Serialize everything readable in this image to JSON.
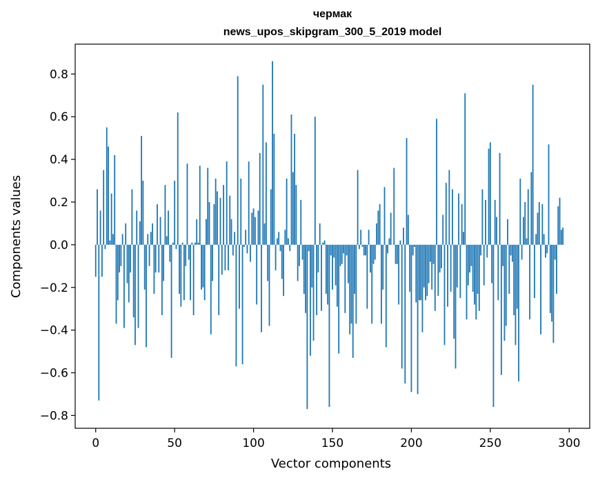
{
  "chart_data": {
    "type": "bar",
    "title": "чермак",
    "subtitle": "news_upos_skipgram_300_5_2019 model",
    "xlabel": "Vector components",
    "ylabel": "Components values",
    "xlim": [
      -13,
      313
    ],
    "ylim": [
      -0.86,
      0.94
    ],
    "xticks": [
      0,
      50,
      100,
      150,
      200,
      250,
      300
    ],
    "xtick_labels": [
      "0",
      "50",
      "100",
      "150",
      "200",
      "250",
      "300"
    ],
    "yticks": [
      0.8,
      0.6,
      0.4,
      0.2,
      0.0,
      -0.2,
      -0.4,
      -0.6,
      -0.8
    ],
    "ytick_labels": [
      "0.8",
      "0.6",
      "0.4",
      "0.2",
      "0.0",
      "−0.2",
      "−0.4",
      "−0.6",
      "−0.8"
    ],
    "bar_color": "#1f77b4",
    "values": [
      -0.15,
      0.26,
      -0.73,
      0.16,
      -0.15,
      0.35,
      -0.02,
      0.55,
      0.46,
      0.02,
      0.24,
      0.05,
      0.42,
      -0.37,
      -0.26,
      -0.13,
      -0.1,
      0.05,
      -0.39,
      0.1,
      -0.18,
      -0.27,
      -0.13,
      0.26,
      -0.34,
      -0.47,
      0.16,
      -0.39,
      0.11,
      0.51,
      0.3,
      -0.21,
      -0.48,
      0.05,
      -0.1,
      0.06,
      0.1,
      -0.23,
      -0.13,
      0.19,
      -0.13,
      0.13,
      -0.33,
      -0.17,
      0.28,
      0.04,
      0.16,
      -0.08,
      -0.53,
      0.01,
      0.3,
      -0.02,
      0.62,
      -0.23,
      -0.29,
      0.01,
      -0.26,
      -0.1,
      0.38,
      -0.07,
      -0.26,
      0.01,
      -0.33,
      0.01,
      0.12,
      0.01,
      0.37,
      -0.21,
      -0.2,
      -0.26,
      0.12,
      0.36,
      0.2,
      -0.42,
      -0.17,
      0.19,
      0.31,
      0.25,
      -0.33,
      0.22,
      -0.14,
      0.28,
      -0.12,
      0.39,
      -0.12,
      0.23,
      0.12,
      -0.05,
      0.06,
      -0.57,
      0.79,
      -0.3,
      0.31,
      -0.56,
      -0.01,
      0.07,
      -0.04,
      0.39,
      -0.08,
      0.15,
      0.17,
      0.13,
      -0.28,
      0.16,
      0.43,
      -0.41,
      0.75,
      0.1,
      0.48,
      -0.17,
      -0.38,
      0.26,
      0.86,
      0.52,
      -0.12,
      0.03,
      0.06,
      -0.03,
      -0.16,
      -0.24,
      0.07,
      0.31,
      0.03,
      -0.03,
      0.61,
      0.34,
      0.52,
      0.28,
      -0.17,
      -0.1,
      0.21,
      -0.07,
      -0.23,
      -0.32,
      -0.77,
      -0.03,
      -0.52,
      -0.2,
      -0.45,
      0.6,
      -0.33,
      -0.13,
      0.1,
      -0.31,
      0.01,
      0.02,
      -0.23,
      -0.28,
      -0.76,
      -0.05,
      -0.21,
      -0.06,
      -0.19,
      -0.29,
      -0.51,
      -0.1,
      -0.09,
      -0.04,
      -0.32,
      -0.05,
      -0.18,
      -0.42,
      -0.37,
      -0.53,
      -0.23,
      -0.37,
      0.35,
      -0.02,
      0.07,
      -0.01,
      -0.05,
      -0.05,
      -0.3,
      0.07,
      -0.13,
      -0.37,
      -0.09,
      -0.07,
      0.1,
      0.16,
      0.19,
      -0.37,
      -0.21,
      0.27,
      -0.48,
      -0.04,
      0.03,
      0.15,
      0.0,
      0.36,
      -0.09,
      -0.09,
      -0.28,
      0.02,
      -0.58,
      0.08,
      -0.65,
      0.5,
      0.14,
      -0.22,
      -0.69,
      -0.05,
      -0.01,
      -0.27,
      -0.7,
      -0.26,
      -0.26,
      -0.41,
      -0.2,
      -0.26,
      -0.24,
      -0.18,
      -0.08,
      -0.21,
      -0.09,
      -0.31,
      0.59,
      -0.24,
      -0.13,
      -0.11,
      0.14,
      -0.47,
      0.29,
      -0.29,
      0.35,
      -0.22,
      0.26,
      -0.44,
      -0.58,
      -0.2,
      0.24,
      -0.25,
      0.19,
      0.06,
      0.71,
      -0.35,
      -0.19,
      -0.13,
      -0.1,
      -0.22,
      -0.28,
      -0.35,
      -0.23,
      -0.31,
      -0.05,
      0.26,
      -0.19,
      0.21,
      -0.06,
      0.45,
      0.48,
      -0.18,
      -0.76,
      0.21,
      0.13,
      -0.26,
      0.43,
      -0.61,
      -0.1,
      -0.45,
      -0.38,
      0.12,
      -0.23,
      -0.05,
      -0.08,
      -0.33,
      -0.47,
      -0.3,
      -0.64,
      0.31,
      -0.07,
      0.13,
      0.2,
      0.03,
      0.26,
      -0.35,
      0.34,
      0.75,
      -0.25,
      0.05,
      0.15,
      0.2,
      -0.42,
      0.19,
      0.05,
      -0.06,
      -0.04,
      0.47,
      -0.32,
      -0.36,
      -0.46,
      -0.07,
      -0.23,
      0.18,
      0.22,
      0.07,
      0.08
    ]
  }
}
